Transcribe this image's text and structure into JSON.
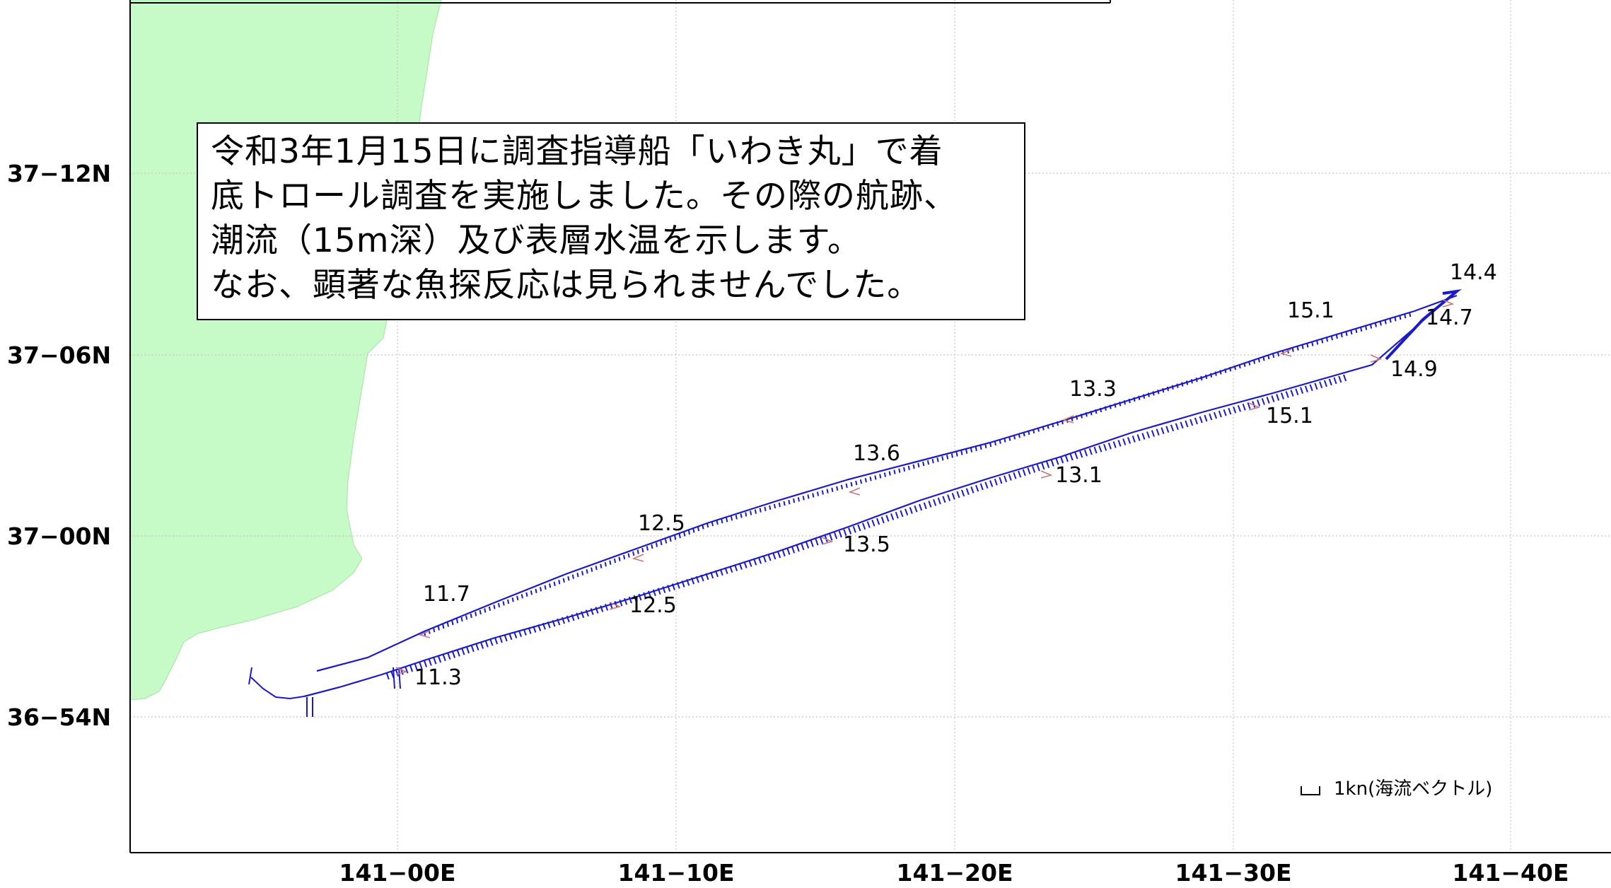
{
  "note": {
    "lines": [
      "令和3年1月15日に調査指導船「いわき丸」で着",
      "底トロール調査を実施しました。その際の航跡、",
      "潮流（15m深）及び表層水温を示します。",
      "なお、顕著な魚探反応は見られませんでした。"
    ]
  },
  "axes": {
    "lat_labels": [
      "37−12N",
      "37−06N",
      "37−00N",
      "36−54N"
    ],
    "lon_labels": [
      "141−00E",
      "141−10E",
      "141−20E",
      "141−30E",
      "141−40E"
    ]
  },
  "legend": {
    "label": "1kn(海流ベクトル)"
  },
  "temperatures": {
    "northern_track": [
      "11.7",
      "12.5",
      "13.6",
      "13.3",
      "15.1",
      "14.4"
    ],
    "southern_track": [
      "11.3",
      "12.5",
      "13.5",
      "13.1",
      "15.1",
      "14.9",
      "14.7"
    ]
  },
  "colors": {
    "land": "#c6fac6",
    "track": "#1a1acc",
    "grid": "#c8c8c8",
    "survey_marker": "#c87878"
  }
}
